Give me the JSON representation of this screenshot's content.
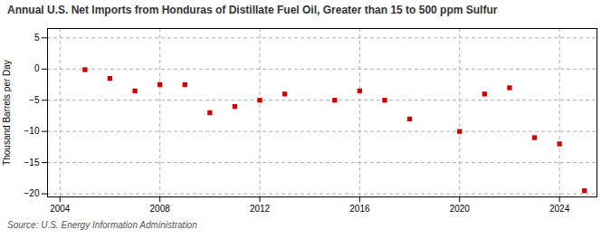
{
  "chart_data": {
    "type": "scatter",
    "title": "Annual U.S. Net Imports from Honduras of Distillate Fuel Oil, Greater than 15 to 500 ppm Sulfur",
    "ylabel": "Thousand Barrels per Day",
    "annotations": [
      "Source: U.S. Energy Information Administration"
    ],
    "x": [
      2005,
      2006,
      2007,
      2008,
      2009,
      2010,
      2011,
      2012,
      2013,
      2015,
      2016,
      2017,
      2018,
      2020,
      2021,
      2022,
      2023,
      2024,
      2025
    ],
    "values": [
      -0.1,
      -1.5,
      -3.5,
      -2.5,
      -2.5,
      -7.0,
      -6.0,
      -5.0,
      -4.0,
      -5.0,
      -3.5,
      -5.0,
      -8.0,
      -10.0,
      -4.0,
      -3.0,
      -11.0,
      -12.0,
      -19.5
    ],
    "color": "#cc0000",
    "marker": "square",
    "xlim": [
      2003.5,
      2025.5
    ],
    "ylim": [
      -20.5,
      6.5
    ],
    "xticks": [
      2004,
      2008,
      2012,
      2016,
      2020,
      2024
    ],
    "yticks": [
      5,
      0,
      -5,
      -10,
      -15,
      -20
    ],
    "grid": true
  }
}
